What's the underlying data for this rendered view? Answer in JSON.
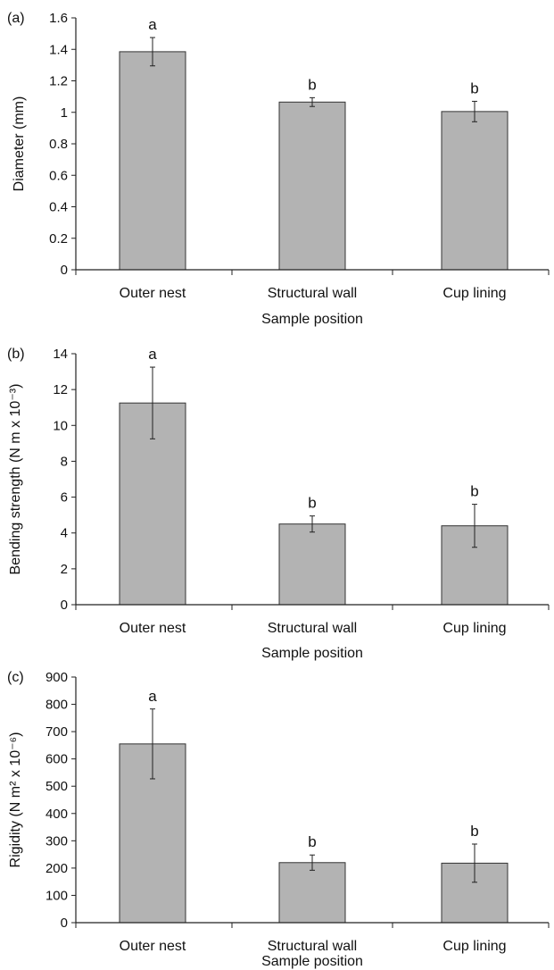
{
  "chart_data": [
    {
      "type": "bar",
      "panel_label": "(a)",
      "categories": [
        "Outer nest",
        "Structural wall",
        "Cup lining"
      ],
      "values": [
        1.385,
        1.065,
        1.005
      ],
      "errors": [
        0.09,
        0.028,
        0.065
      ],
      "letters": [
        "a",
        "b",
        "b"
      ],
      "xlabel": "Sample position",
      "ylabel": "Diameter (mm)",
      "ylim": [
        0,
        1.6
      ],
      "yticks": [
        0,
        0.2,
        0.4,
        0.6,
        0.8,
        1,
        1.2,
        1.4,
        1.6
      ],
      "ytick_labels": [
        "0",
        "0.2",
        "0.4",
        "0.6",
        "0.8",
        "1",
        "1.2",
        "1.4",
        "1.6"
      ],
      "bar_color": "#b3b3b3",
      "grid": false
    },
    {
      "type": "bar",
      "panel_label": "(b)",
      "categories": [
        "Outer nest",
        "Structural wall",
        "Cup lining"
      ],
      "values": [
        11.25,
        4.5,
        4.4
      ],
      "errors": [
        2.0,
        0.45,
        1.2
      ],
      "letters": [
        "a",
        "b",
        "b"
      ],
      "xlabel": "Sample position",
      "ylabel": "Bending strength (N m x 10⁻³)",
      "ylim": [
        0,
        14
      ],
      "yticks": [
        0,
        2,
        4,
        6,
        8,
        10,
        12,
        14
      ],
      "ytick_labels": [
        "0",
        "2",
        "4",
        "6",
        "8",
        "10",
        "12",
        "14"
      ],
      "bar_color": "#b3b3b3",
      "grid": false
    },
    {
      "type": "bar",
      "panel_label": "(c)",
      "categories": [
        "Outer nest",
        "Structural wall",
        "Cup lining"
      ],
      "values": [
        655,
        220,
        218
      ],
      "errors": [
        128,
        28,
        70
      ],
      "letters": [
        "a",
        "b",
        "b"
      ],
      "xlabel": "Sample position",
      "ylabel": "Rigidity (N m² x 10⁻⁶)",
      "ylim": [
        0,
        900
      ],
      "yticks": [
        0,
        100,
        200,
        300,
        400,
        500,
        600,
        700,
        800,
        900
      ],
      "ytick_labels": [
        "0",
        "100",
        "200",
        "300",
        "400",
        "500",
        "600",
        "700",
        "800",
        "900"
      ],
      "bar_color": "#b3b3b3",
      "grid": false
    }
  ]
}
